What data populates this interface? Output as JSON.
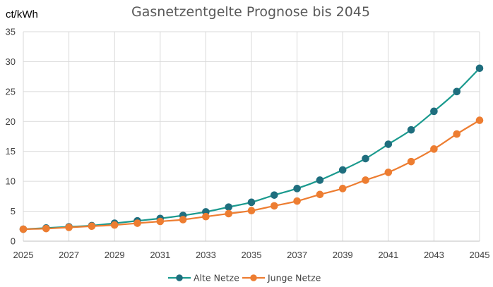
{
  "chart_data": {
    "type": "line",
    "title": "Gasnetzentgelte Prognose bis 2045",
    "ylabel": "ct/kWh",
    "xlabel": "",
    "x": [
      2025,
      2026,
      2027,
      2028,
      2029,
      2030,
      2031,
      2032,
      2033,
      2034,
      2035,
      2036,
      2037,
      2038,
      2039,
      2040,
      2041,
      2042,
      2043,
      2044,
      2045
    ],
    "x_tick_labels": [
      "2025",
      "2027",
      "2029",
      "2031",
      "2033",
      "2035",
      "2037",
      "2039",
      "2041",
      "2043",
      "2045"
    ],
    "y_tick_labels": [
      "0",
      "5",
      "10",
      "15",
      "20",
      "25",
      "30",
      "35"
    ],
    "ylim": [
      0,
      35
    ],
    "xlim": [
      2025,
      2045
    ],
    "grid": true,
    "legend_position": "bottom",
    "series": [
      {
        "name": "Alte Netze",
        "color": "#1f6e7e",
        "line_color": "#1a9a8e",
        "values": [
          2.0,
          2.2,
          2.4,
          2.6,
          3.0,
          3.4,
          3.8,
          4.3,
          4.9,
          5.7,
          6.5,
          7.7,
          8.8,
          10.2,
          11.9,
          13.8,
          16.2,
          18.6,
          21.7,
          25.0,
          28.9
        ]
      },
      {
        "name": "Junge Netze",
        "color": "#ed7d31",
        "line_color": "#ed7d31",
        "values": [
          2.0,
          2.1,
          2.3,
          2.5,
          2.7,
          3.0,
          3.3,
          3.6,
          4.1,
          4.6,
          5.1,
          5.9,
          6.7,
          7.8,
          8.8,
          10.2,
          11.5,
          13.3,
          15.4,
          17.9,
          20.2
        ]
      }
    ]
  }
}
